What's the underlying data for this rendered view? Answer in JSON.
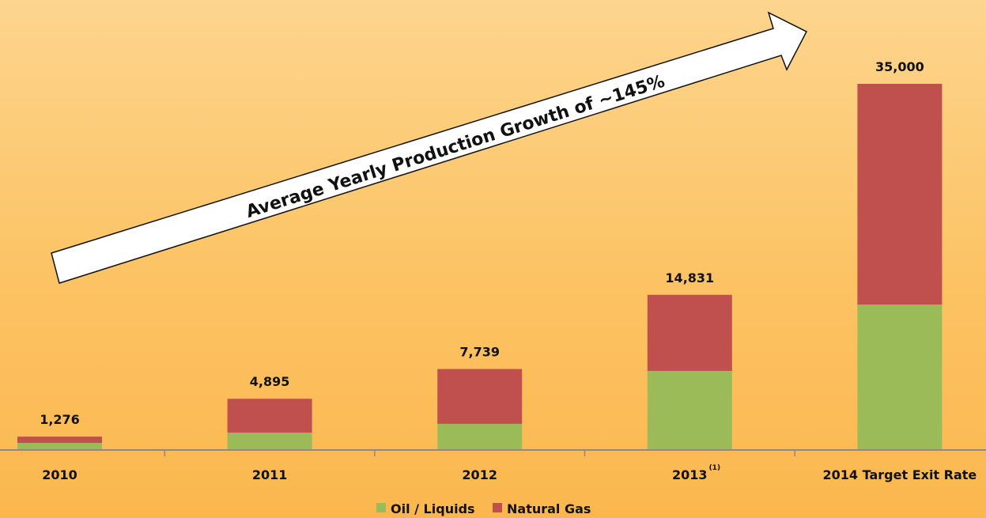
{
  "chart_data": {
    "type": "bar",
    "stacked": true,
    "title": "",
    "annotation": "Average Yearly Production Growth of ~145%",
    "categories": [
      "2010",
      "2011",
      "2012",
      "2013",
      "2014 Target Exit Rate"
    ],
    "category_superscripts": [
      "",
      "",
      "",
      "(1)",
      ""
    ],
    "totals": [
      "1,276",
      "4,895",
      "7,739",
      "14,831",
      "35,000"
    ],
    "series": [
      {
        "name": "Oil / Liquids",
        "color": "#9bbb59",
        "values": [
          680,
          1660,
          2500,
          7560,
          13900
        ]
      },
      {
        "name": "Natural Gas",
        "color": "#c0504d",
        "values": [
          596,
          3235,
          5239,
          7271,
          21100
        ]
      }
    ],
    "ylim": [
      0,
      35000
    ],
    "grid": false,
    "legend": "bottom"
  }
}
